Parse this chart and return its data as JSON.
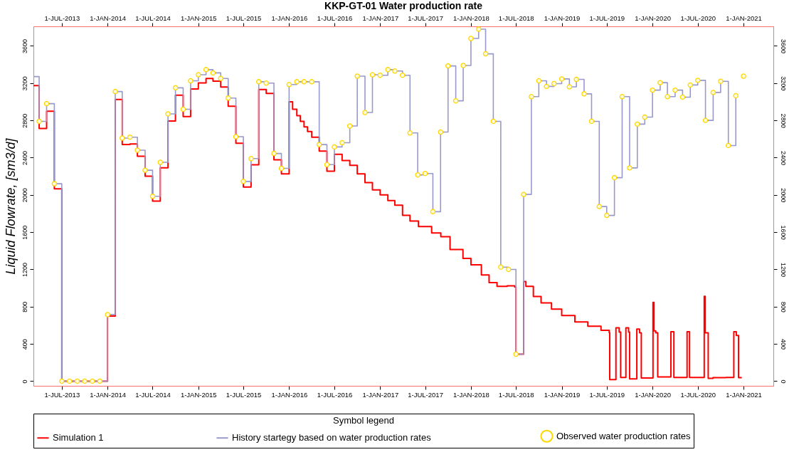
{
  "chart_data": {
    "type": "step",
    "title": "KKP-GT-01 Water production rate",
    "ylabel": "Liquid Flowrate, [sm3/d]",
    "legend_title": "Symbol legend",
    "legend": "bottom",
    "xlim": [
      "2013-03-09",
      "2021-05-01"
    ],
    "x2lim": [
      "2013-03-09",
      "2021-05-01"
    ],
    "xticks": [
      {
        "value": "2013-07-01",
        "label": "1-JUL-2013"
      },
      {
        "value": "2014-01-01",
        "label": "1-JAN-2014"
      },
      {
        "value": "2014-07-01",
        "label": "1-JUL-2014"
      },
      {
        "value": "2015-01-01",
        "label": "1-JAN-2015"
      },
      {
        "value": "2015-07-01",
        "label": "1-JUL-2015"
      },
      {
        "value": "2016-01-01",
        "label": "1-JAN-2016"
      },
      {
        "value": "2016-07-01",
        "label": "1-JUL-2016"
      },
      {
        "value": "2017-01-01",
        "label": "1-JAN-2017"
      },
      {
        "value": "2017-07-01",
        "label": "1-JUL-2017"
      },
      {
        "value": "2018-01-01",
        "label": "1-JAN-2018"
      },
      {
        "value": "2018-07-01",
        "label": "1-JUL-2018"
      },
      {
        "value": "2019-01-01",
        "label": "1-JAN-2019"
      },
      {
        "value": "2019-07-01",
        "label": "1-JUL-2019"
      },
      {
        "value": "2020-01-01",
        "label": "1-JAN-2020"
      },
      {
        "value": "2020-07-01",
        "label": "1-JUL-2020"
      },
      {
        "value": "2021-01-01",
        "label": "1-JAN-2021"
      }
    ],
    "x2ticks": [
      {
        "value": "2013-07-01",
        "label": "1-JUL-2013"
      },
      {
        "value": "2014-01-01",
        "label": "1-JAN-2014"
      },
      {
        "value": "2014-07-01",
        "label": "1-JUL-2014"
      },
      {
        "value": "2015-01-01",
        "label": "1-JAN-2015"
      },
      {
        "value": "2015-07-01",
        "label": "1-JUL-2015"
      },
      {
        "value": "2016-01-01",
        "label": "1-JAN-2016"
      },
      {
        "value": "2016-07-01",
        "label": "1-JUL-2016"
      },
      {
        "value": "2017-01-01",
        "label": "1-JAN-2017"
      },
      {
        "value": "2017-07-01",
        "label": "1-JUL-2017"
      },
      {
        "value": "2018-01-01",
        "label": "1-JAN-2018"
      },
      {
        "value": "2018-07-01",
        "label": "1-JUL-2018"
      },
      {
        "value": "2019-01-01",
        "label": "1-JAN-2019"
      },
      {
        "value": "2019-07-01",
        "label": "1-JUL-2019"
      },
      {
        "value": "2020-01-01",
        "label": "1-JAN-2020"
      },
      {
        "value": "2020-07-01",
        "label": "1-JUL-2020"
      },
      {
        "value": "2021-01-01",
        "label": "1-JAN-2021"
      }
    ],
    "ylim": [
      -50,
      3810
    ],
    "yticks": [
      0,
      400,
      800,
      1200,
      1600,
      2000,
      2400,
      2800,
      3200,
      3600
    ],
    "y2lim": [
      -50,
      3810
    ],
    "y2ticks": [
      0,
      400,
      800,
      1200,
      1600,
      2000,
      2400,
      2800,
      3200,
      3600
    ],
    "series": [
      {
        "name": "Simulation  1",
        "color": "#ff0000",
        "x": [
          "2013-03-09",
          "2013-04",
          "2013-05",
          "2013-06",
          "2013-07",
          "2014-01",
          "2014-02",
          "2014-03",
          "2014-04",
          "2014-05",
          "2014-06",
          "2014-07",
          "2014-08",
          "2014-09",
          "2014-10",
          "2014-11",
          "2014-12",
          "2015-01",
          "2015-02",
          "2015-03",
          "2015-04",
          "2015-05",
          "2015-06",
          "2015-07",
          "2015-08",
          "2015-09",
          "2015-10",
          "2015-11",
          "2015-12",
          "2016-01-01",
          "2016-01-15",
          "2016-02-01",
          "2016-02-15",
          "2016-03-01",
          "2016-03-15",
          "2016-04-01",
          "2016-05-01",
          "2016-06-01",
          "2016-07-01",
          "2016-08-01",
          "2016-09-01",
          "2016-10-01",
          "2016-11-01",
          "2016-12-01",
          "2017-01-01",
          "2017-02-01",
          "2017-03-01",
          "2017-04-01",
          "2017-05-01",
          "2017-06-04",
          "2017-07-27",
          "2017-09-02",
          "2017-10-09",
          "2017-11-30",
          "2018-01-01",
          "2018-02-12",
          "2018-03-15",
          "2018-04-16",
          "2018-05-27",
          "2018-06-26",
          "2018-07-01",
          "2018-08-01",
          "2018-08-10",
          "2018-09-09",
          "2018-10-10",
          "2018-11-21",
          "2019-01-01",
          "2019-02-23",
          "2019-04-16",
          "2019-06-08",
          "2019-07-11",
          "2019-07-13",
          "2019-08-07",
          "2019-08-20",
          "2019-08-26",
          "2019-09-16",
          "2019-09-27",
          "2019-10-01",
          "2019-10-30",
          "2019-11-10",
          "2019-11-17",
          "2020-01-03",
          "2020-01-07",
          "2020-01-14",
          "2020-01-22",
          "2020-03-15",
          "2020-03-27",
          "2020-05-19",
          "2020-05-29",
          "2020-07-27",
          "2020-07-31",
          "2020-08-12",
          "2020-08-31",
          "2020-10-22",
          "2020-11-23",
          "2020-12-03",
          "2020-12-12",
          "2020-12-25"
        ],
        "values": [
          3174,
          2714,
          2899,
          2066,
          0,
          700,
          3024,
          2542,
          2547,
          2415,
          2201,
          1934,
          2291,
          2794,
          3071,
          2841,
          3137,
          3203,
          3251,
          3222,
          3158,
          2952,
          2555,
          2085,
          2323,
          3132,
          3090,
          2376,
          2225,
          3000,
          2920,
          2850,
          2790,
          2730,
          2680,
          2620,
          2470,
          2254,
          2436,
          2370,
          2317,
          2225,
          2132,
          2053,
          2000,
          1940,
          1890,
          1780,
          1720,
          1660,
          1592,
          1551,
          1414,
          1319,
          1250,
          1141,
          1059,
          1018,
          1024,
          1010,
          290,
          1070,
          1018,
          909,
          841,
          773,
          704,
          636,
          590,
          546,
          521,
          16,
          573,
          527,
          40,
          573,
          527,
          25,
          560,
          520,
          35,
          846,
          540,
          519,
          45,
          530,
          40,
          530,
          40,
          912,
          520,
          30,
          38,
          40,
          530,
          490,
          38,
          38
        ]
      },
      {
        "name": "History startegy based on water production rates",
        "color": "#9999cc",
        "x": [
          "2013-03-09",
          "2013-04",
          "2013-05",
          "2013-06",
          "2013-07",
          "2013-08",
          "2013-09",
          "2013-10",
          "2013-11",
          "2013-12",
          "2014-01",
          "2014-02",
          "2014-03",
          "2014-04",
          "2014-05",
          "2014-06",
          "2014-07",
          "2014-08",
          "2014-09",
          "2014-10",
          "2014-11",
          "2014-12",
          "2015-01",
          "2015-02",
          "2015-03",
          "2015-04",
          "2015-05",
          "2015-06",
          "2015-07",
          "2015-08",
          "2015-09",
          "2015-10",
          "2015-11",
          "2015-12",
          "2016-01",
          "2016-02",
          "2016-03",
          "2016-04",
          "2016-05",
          "2016-06",
          "2016-07",
          "2016-08",
          "2016-09",
          "2016-10",
          "2016-11",
          "2016-12",
          "2017-01",
          "2017-02",
          "2017-03",
          "2017-04",
          "2017-05",
          "2017-06",
          "2017-07",
          "2017-08",
          "2017-09",
          "2017-10",
          "2017-11",
          "2017-12",
          "2018-01",
          "2018-02",
          "2018-03",
          "2018-04",
          "2018-05",
          "2018-06",
          "2018-07",
          "2018-08",
          "2018-09",
          "2018-10",
          "2018-11",
          "2018-12",
          "2019-01",
          "2019-02",
          "2019-03",
          "2019-04",
          "2019-05",
          "2019-06",
          "2019-07",
          "2019-08",
          "2019-09",
          "2019-10",
          "2019-11",
          "2019-12",
          "2020-01",
          "2020-02",
          "2020-03",
          "2020-04",
          "2020-05",
          "2020-06",
          "2020-07",
          "2020-08",
          "2020-09",
          "2020-10",
          "2020-11",
          "2020-12"
        ],
        "values": [
          3270,
          2790,
          2980,
          2120,
          0,
          0,
          0,
          0,
          0,
          0,
          715,
          3110,
          2610,
          2620,
          2480,
          2265,
          1985,
          2350,
          2870,
          3150,
          2920,
          3225,
          3290,
          3345,
          3310,
          3250,
          3040,
          2625,
          2145,
          2390,
          3215,
          3200,
          2445,
          2285,
          3185,
          3215,
          3215,
          3215,
          2540,
          2325,
          2515,
          2560,
          2740,
          3275,
          2885,
          3290,
          3285,
          3345,
          3330,
          3285,
          2665,
          2215,
          2230,
          1820,
          2675,
          3385,
          3010,
          3390,
          3680,
          3780,
          3515,
          2790,
          1225,
          1200,
          290,
          2005,
          3055,
          3225,
          3165,
          3195,
          3245,
          3160,
          3240,
          3085,
          2790,
          1875,
          1780,
          2185,
          3055,
          2290,
          2760,
          2835,
          3125,
          3205,
          3055,
          3125,
          3050,
          3180,
          3230,
          2800,
          3100,
          3220,
          2530,
          3065
        ]
      },
      {
        "name": "Observed water production rates",
        "type": "scatter",
        "marker": "circle",
        "color": "#ffd700",
        "x": [
          "2013-04",
          "2013-05",
          "2013-06",
          "2013-07",
          "2013-08",
          "2013-09",
          "2013-10",
          "2013-11",
          "2013-12",
          "2014-01",
          "2014-02",
          "2014-03",
          "2014-04",
          "2014-05",
          "2014-06",
          "2014-07",
          "2014-08",
          "2014-09",
          "2014-10",
          "2014-11",
          "2014-12",
          "2015-01",
          "2015-02",
          "2015-03",
          "2015-04",
          "2015-05",
          "2015-06",
          "2015-07",
          "2015-08",
          "2015-09",
          "2015-10",
          "2015-11",
          "2015-12",
          "2016-01",
          "2016-02",
          "2016-03",
          "2016-04",
          "2016-05",
          "2016-06",
          "2016-07",
          "2016-08",
          "2016-09",
          "2016-10",
          "2016-11",
          "2016-12",
          "2017-01",
          "2017-02",
          "2017-03",
          "2017-04",
          "2017-05",
          "2017-06",
          "2017-07",
          "2017-08",
          "2017-09",
          "2017-10",
          "2017-11",
          "2017-12",
          "2018-01",
          "2018-02",
          "2018-03",
          "2018-04",
          "2018-05",
          "2018-06",
          "2018-07",
          "2018-08",
          "2018-09",
          "2018-10",
          "2018-11",
          "2018-12",
          "2019-01",
          "2019-02",
          "2019-03",
          "2019-04",
          "2019-05",
          "2019-06",
          "2019-07",
          "2019-08",
          "2019-09",
          "2019-10",
          "2019-11",
          "2019-12",
          "2020-01",
          "2020-02",
          "2020-03",
          "2020-04",
          "2020-05",
          "2020-06",
          "2020-07",
          "2020-08",
          "2020-09",
          "2020-10",
          "2020-11",
          "2020-12",
          "2021-01"
        ],
        "values": [
          2790,
          2980,
          2120,
          0,
          0,
          0,
          0,
          0,
          0,
          715,
          3110,
          2610,
          2620,
          2480,
          2265,
          1985,
          2350,
          2870,
          3150,
          2920,
          3225,
          3290,
          3345,
          3310,
          3250,
          3040,
          2625,
          2145,
          2390,
          3215,
          3200,
          2445,
          2285,
          3185,
          3215,
          3215,
          3215,
          2540,
          2325,
          2515,
          2560,
          2740,
          3275,
          2885,
          3290,
          3285,
          3345,
          3330,
          3285,
          2665,
          2215,
          2230,
          1820,
          2675,
          3385,
          3010,
          3390,
          3680,
          3780,
          3515,
          2790,
          1225,
          1200,
          290,
          2005,
          3055,
          3225,
          3165,
          3195,
          3245,
          3160,
          3240,
          3085,
          2790,
          1875,
          1780,
          2185,
          3055,
          2290,
          2760,
          2835,
          3125,
          3205,
          3055,
          3125,
          3050,
          3180,
          3230,
          2800,
          3100,
          3220,
          2530,
          3065,
          3275
        ]
      }
    ]
  }
}
